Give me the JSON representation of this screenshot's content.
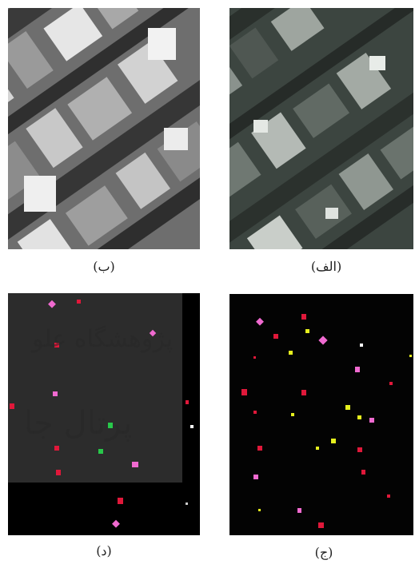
{
  "figure": {
    "panels": [
      {
        "id": "top-left",
        "caption": "(ب)",
        "style": "grayscale"
      },
      {
        "id": "top-right",
        "caption": "(الف)",
        "style": "color"
      },
      {
        "id": "bottom-left",
        "caption": "(د)",
        "style": "detection-overlay"
      },
      {
        "id": "bottom-right",
        "caption": "(ج)",
        "style": "detection"
      }
    ],
    "watermark": {
      "line1": "ﭘﮋوﻫﺸﮕﺎه ﻋﻠﻮ",
      "line2": "ﭘﺮﺗﺎل ﺟﺎ"
    }
  },
  "colors": {
    "background": "#ffffff",
    "detect_red": "#e0183a",
    "detect_pink": "#f06ad0",
    "detect_yellow": "#e6f01e",
    "detect_green": "#28c84a"
  }
}
